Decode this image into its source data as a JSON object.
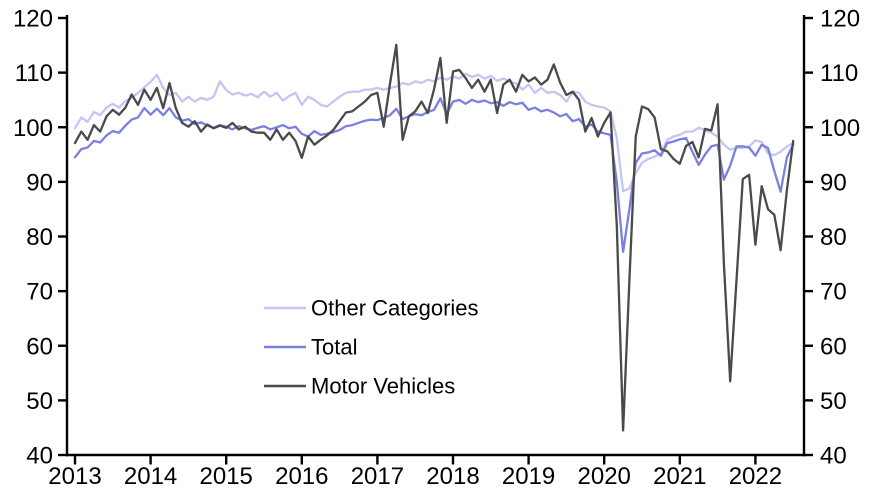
{
  "chart_data": {
    "type": "line",
    "title": "",
    "frequency": "monthly",
    "x_start": "2013-01",
    "x_end": "2022-07",
    "x_tick_labels": [
      "2013",
      "2014",
      "2015",
      "2016",
      "2017",
      "2018",
      "2019",
      "2020",
      "2021",
      "2022"
    ],
    "y_ticks": [
      40,
      50,
      60,
      70,
      80,
      90,
      100,
      110,
      120
    ],
    "ylim": [
      40,
      120
    ],
    "grid": false,
    "dual_y_axis": true,
    "legend_position": "inside-left-middle",
    "background": "#ffffff",
    "axis_color": "#000000",
    "series": [
      {
        "name": "Other Categories",
        "color": "#c3c6f2",
        "values": [
          99.8,
          101.8,
          101.0,
          102.8,
          102.2,
          103.6,
          104.3,
          103.6,
          104.8,
          105.4,
          106.3,
          107.3,
          108.3,
          109.6,
          107.2,
          105.9,
          106.3,
          104.7,
          105.6,
          104.7,
          105.4,
          105.0,
          105.6,
          108.4,
          106.8,
          106.0,
          106.3,
          105.8,
          106.1,
          105.5,
          106.5,
          105.6,
          106.3,
          104.9,
          105.7,
          106.3,
          104.1,
          105.6,
          105.0,
          104.1,
          103.8,
          104.7,
          105.6,
          106.3,
          106.5,
          106.5,
          106.9,
          106.9,
          107.2,
          106.9,
          107.2,
          107.4,
          108.1,
          107.8,
          108.4,
          108.1,
          108.7,
          108.4,
          109.1,
          108.7,
          109.3,
          108.9,
          109.8,
          109.2,
          109.6,
          108.9,
          109.4,
          108.5,
          108.9,
          108.4,
          108.0,
          106.9,
          107.8,
          106.3,
          107.2,
          106.3,
          106.5,
          105.9,
          104.7,
          106.5,
          106.3,
          104.7,
          104.1,
          103.8,
          103.6,
          102.9,
          98.0,
          88.3,
          88.8,
          91.6,
          93.5,
          94.2,
          94.6,
          95.2,
          97.7,
          98.3,
          98.6,
          99.2,
          99.2,
          99.9,
          99.5,
          99.0,
          98.3,
          96.8,
          95.9,
          96.2,
          96.2,
          96.5,
          97.6,
          97.3,
          95.2,
          94.9,
          95.5,
          96.5,
          97.1
        ]
      },
      {
        "name": "Total",
        "color": "#7a80e2",
        "values": [
          94.5,
          96.0,
          96.3,
          97.5,
          97.2,
          98.5,
          99.3,
          99.0,
          100.3,
          101.4,
          101.8,
          103.5,
          102.3,
          103.4,
          102.2,
          103.5,
          101.8,
          101.2,
          101.5,
          100.6,
          100.9,
          100.3,
          99.9,
          100.4,
          100.1,
          99.6,
          100.2,
          99.8,
          99.5,
          99.9,
          100.2,
          99.6,
          100.0,
          100.4,
          99.8,
          100.1,
          98.8,
          98.3,
          99.3,
          98.6,
          98.8,
          99.1,
          99.5,
          100.2,
          100.4,
          100.8,
          101.2,
          101.4,
          101.3,
          101.7,
          102.2,
          103.4,
          101.5,
          102.0,
          102.4,
          102.2,
          102.8,
          103.2,
          105.3,
          102.4,
          104.7,
          105.0,
          104.3,
          105.0,
          104.6,
          104.9,
          104.4,
          104.6,
          103.9,
          104.6,
          104.2,
          104.5,
          103.2,
          103.6,
          102.9,
          103.2,
          102.7,
          102.0,
          102.4,
          101.1,
          101.5,
          100.1,
          100.5,
          99.2,
          98.9,
          98.6,
          90.0,
          77.2,
          85.0,
          93.5,
          95.2,
          95.4,
          95.8,
          94.8,
          97.1,
          97.4,
          97.8,
          98.0,
          95.5,
          93.1,
          95.0,
          96.5,
          96.8,
          90.4,
          93.0,
          96.5,
          96.5,
          96.3,
          94.8,
          96.8,
          96.2,
          92.0,
          88.2,
          94.5,
          96.8
        ]
      },
      {
        "name": "Motor Vehicles",
        "color": "#4a4a4a",
        "values": [
          97.1,
          99.2,
          97.7,
          100.4,
          99.2,
          102.0,
          103.2,
          102.3,
          103.6,
          106.0,
          104.1,
          106.9,
          105.0,
          107.2,
          103.5,
          108.1,
          103.5,
          100.8,
          100.1,
          101.1,
          99.2,
          100.5,
          99.8,
          100.3,
          99.9,
          100.8,
          99.6,
          100.1,
          99.2,
          99.0,
          99.0,
          97.7,
          99.6,
          97.7,
          99.0,
          97.5,
          94.4,
          98.3,
          96.8,
          97.7,
          98.5,
          99.5,
          101.1,
          102.7,
          102.9,
          103.8,
          104.7,
          105.9,
          106.3,
          100.1,
          108.0,
          115.1,
          97.7,
          102.0,
          102.9,
          104.7,
          102.6,
          107.0,
          112.7,
          100.8,
          110.2,
          110.5,
          109.0,
          107.2,
          108.7,
          106.5,
          108.7,
          102.6,
          107.8,
          108.7,
          106.5,
          109.6,
          108.4,
          109.1,
          107.8,
          108.7,
          111.5,
          108.2,
          105.9,
          106.5,
          105.0,
          99.2,
          101.7,
          98.3,
          100.8,
          102.7,
          82.0,
          44.5,
          72.0,
          98.3,
          103.8,
          103.3,
          101.8,
          96.0,
          95.6,
          94.2,
          93.3,
          96.6,
          97.3,
          94.5,
          99.7,
          99.4,
          104.2,
          75.0,
          53.5,
          72.0,
          90.5,
          91.3,
          78.5,
          89.2,
          85.0,
          84.0,
          77.5,
          88.5,
          97.5
        ]
      }
    ]
  }
}
